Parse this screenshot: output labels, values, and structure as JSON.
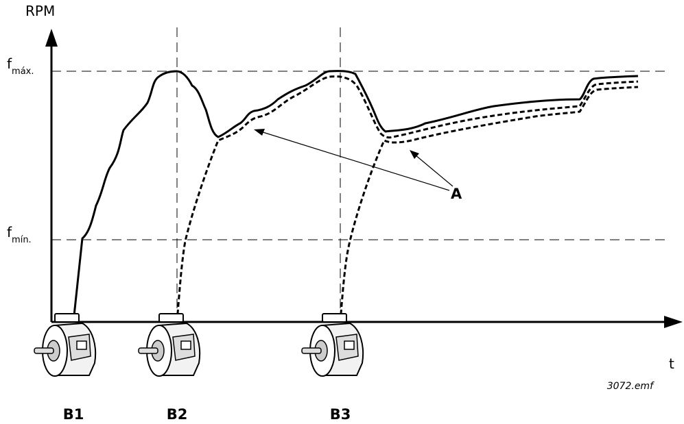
{
  "y_axis_label": "RPM",
  "x_axis_label": "t",
  "levels": {
    "max": {
      "symbol": "f",
      "subscript": "máx."
    },
    "min": {
      "symbol": "f",
      "subscript": "mín."
    }
  },
  "annotation": "A",
  "motors": [
    "B1",
    "B2",
    "B3"
  ],
  "file_label": "3072.emf"
}
